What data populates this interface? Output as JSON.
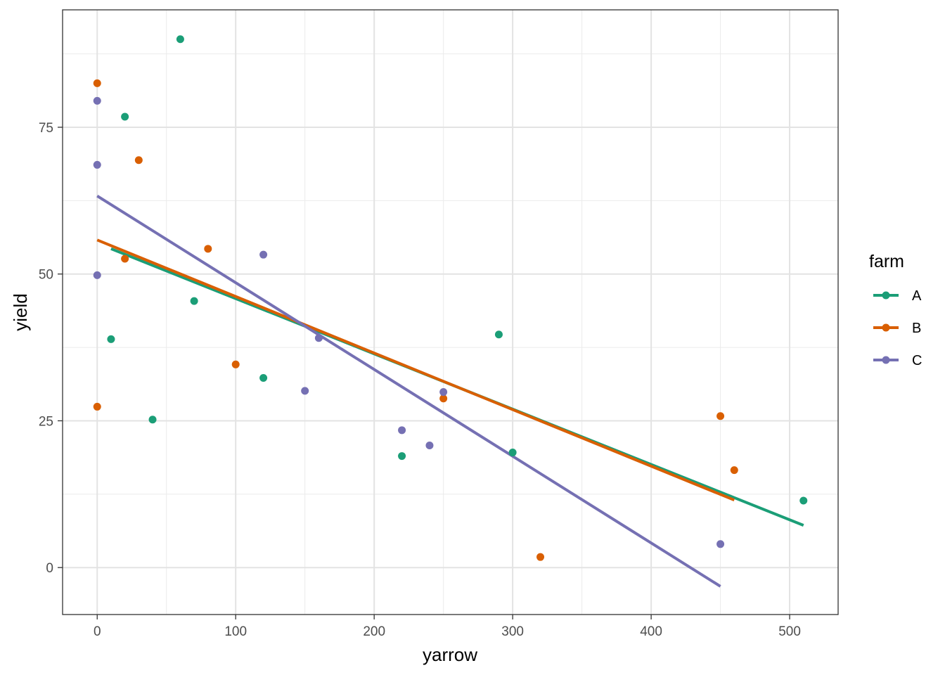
{
  "chart_data": {
    "type": "scatter",
    "xlabel": "yarrow",
    "ylabel": "yield",
    "xlim": [
      -25,
      535
    ],
    "ylim": [
      -8,
      95
    ],
    "xticks": [
      0,
      100,
      200,
      300,
      400,
      500
    ],
    "yticks": [
      0,
      25,
      50,
      75
    ],
    "grid": true,
    "legend": {
      "title": "farm",
      "position": "right"
    },
    "series": [
      {
        "name": "A",
        "color": "#1b9e77",
        "points": [
          {
            "x": 60,
            "y": 90
          },
          {
            "x": 20,
            "y": 76.8
          },
          {
            "x": 70,
            "y": 45.4
          },
          {
            "x": 10,
            "y": 38.9
          },
          {
            "x": 120,
            "y": 32.3
          },
          {
            "x": 40,
            "y": 25.2
          },
          {
            "x": 220,
            "y": 19.0
          },
          {
            "x": 290,
            "y": 39.7
          },
          {
            "x": 300,
            "y": 19.6
          },
          {
            "x": 510,
            "y": 11.4
          }
        ],
        "fit": [
          {
            "x": 10,
            "y": 54.3
          },
          {
            "x": 510,
            "y": 7.2
          }
        ]
      },
      {
        "name": "B",
        "color": "#d95f02",
        "points": [
          {
            "x": 0,
            "y": 82.5
          },
          {
            "x": 30,
            "y": 69.4
          },
          {
            "x": 80,
            "y": 54.3
          },
          {
            "x": 20,
            "y": 52.6
          },
          {
            "x": 100,
            "y": 34.6
          },
          {
            "x": 0,
            "y": 27.4
          },
          {
            "x": 250,
            "y": 28.8
          },
          {
            "x": 320,
            "y": 1.8
          },
          {
            "x": 450,
            "y": 25.8
          },
          {
            "x": 460,
            "y": 16.6
          }
        ],
        "fit": [
          {
            "x": 0,
            "y": 55.8
          },
          {
            "x": 460,
            "y": 11.5
          }
        ]
      },
      {
        "name": "C",
        "color": "#7570b3",
        "points": [
          {
            "x": 0,
            "y": 79.5
          },
          {
            "x": 0,
            "y": 68.6
          },
          {
            "x": 0,
            "y": 49.8
          },
          {
            "x": 120,
            "y": 53.3
          },
          {
            "x": 160,
            "y": 39.1
          },
          {
            "x": 150,
            "y": 30.1
          },
          {
            "x": 220,
            "y": 23.4
          },
          {
            "x": 240,
            "y": 20.8
          },
          {
            "x": 250,
            "y": 29.9
          },
          {
            "x": 450,
            "y": 4.0
          }
        ],
        "fit": [
          {
            "x": 0,
            "y": 63.3
          },
          {
            "x": 450,
            "y": -3.2
          }
        ]
      }
    ]
  }
}
